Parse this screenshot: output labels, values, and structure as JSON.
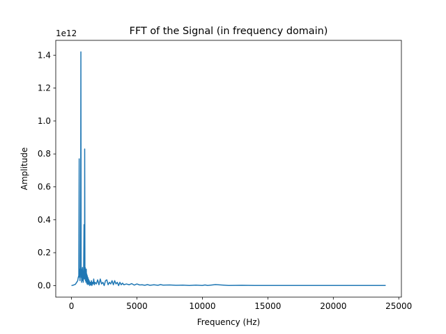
{
  "chart_data": {
    "type": "line",
    "title": "FFT of the Signal (in frequency domain)",
    "xlabel": "Frequency (Hz)",
    "ylabel": "Amplitude",
    "y_offset_label": "1e12",
    "xlim": [
      -1200,
      25200
    ],
    "ylim": [
      -0.07,
      1.49
    ],
    "xticks": [
      0,
      5000,
      10000,
      15000,
      20000,
      25000
    ],
    "xtick_labels": [
      "0",
      "5000",
      "10000",
      "15000",
      "20000",
      "25000"
    ],
    "yticks": [
      0.0,
      0.2,
      0.4,
      0.6,
      0.8,
      1.0,
      1.2,
      1.4
    ],
    "ytick_labels": [
      "0.0",
      "0.2",
      "0.4",
      "0.6",
      "0.8",
      "1.0",
      "1.2",
      "1.4"
    ],
    "grid": false,
    "line_color": "#1f77b4",
    "series": [
      {
        "x": [
          0,
          150,
          300,
          400,
          480,
          520,
          560,
          590,
          610,
          630,
          650,
          670,
          700,
          720,
          740,
          760,
          780,
          800,
          820,
          840,
          860,
          880,
          900,
          930,
          960,
          990,
          1000,
          1010,
          1030,
          1050,
          1070,
          1090,
          1110,
          1130,
          1150,
          1170,
          1190,
          1210,
          1230,
          1250,
          1270,
          1300,
          1330,
          1360,
          1400,
          1440,
          1480,
          1520,
          1560,
          1600,
          1650,
          1700,
          1750,
          1800,
          1900,
          2000,
          2100,
          2200,
          2300,
          2400,
          2500,
          2600,
          2700,
          2800,
          2900,
          3000,
          3100,
          3200,
          3300,
          3400,
          3500,
          3600,
          3700,
          3800,
          3900,
          4000,
          4200,
          4400,
          4600,
          4800,
          5000,
          5200,
          5400,
          5600,
          5800,
          6000,
          6300,
          6600,
          6800,
          7000,
          7500,
          8000,
          8500,
          9000,
          9500,
          10000,
          10200,
          10400,
          11000,
          12000,
          13000,
          14000,
          15000,
          16000,
          16500,
          17000,
          18000,
          19000,
          20000,
          21000,
          22000,
          23000,
          24000
        ],
        "y": [
          0.0,
          0.003,
          0.008,
          0.02,
          0.03,
          0.05,
          0.06,
          0.77,
          0.05,
          0.09,
          0.03,
          0.1,
          0.08,
          1.42,
          0.05,
          0.1,
          0.02,
          0.09,
          0.06,
          0.11,
          0.03,
          0.08,
          0.02,
          0.1,
          0.37,
          0.04,
          0.09,
          0.83,
          0.06,
          0.11,
          0.03,
          0.08,
          0.02,
          0.1,
          0.04,
          0.07,
          0.01,
          0.06,
          0.02,
          0.05,
          0.005,
          0.04,
          0.01,
          0.03,
          0.0,
          0.02,
          0.005,
          0.03,
          0.0,
          0.02,
          0.01,
          0.04,
          0.005,
          0.02,
          0.01,
          0.035,
          0.005,
          0.04,
          0.01,
          0.02,
          0.0,
          0.03,
          0.035,
          0.005,
          0.02,
          0.01,
          0.03,
          0.005,
          0.03,
          0.01,
          0.02,
          0.0,
          0.02,
          0.005,
          0.015,
          0.005,
          0.01,
          0.005,
          0.012,
          0.003,
          0.01,
          0.004,
          0.005,
          0.002,
          0.006,
          0.002,
          0.005,
          0.002,
          0.006,
          0.003,
          0.004,
          0.002,
          0.003,
          0.001,
          0.003,
          0.001,
          0.004,
          0.001,
          0.006,
          0.001,
          0.002,
          0.001,
          0.001,
          0.001,
          0.001,
          0.001,
          0.001,
          0.001,
          0.001,
          0.001,
          0.001,
          0.001,
          0.001
        ]
      }
    ]
  }
}
